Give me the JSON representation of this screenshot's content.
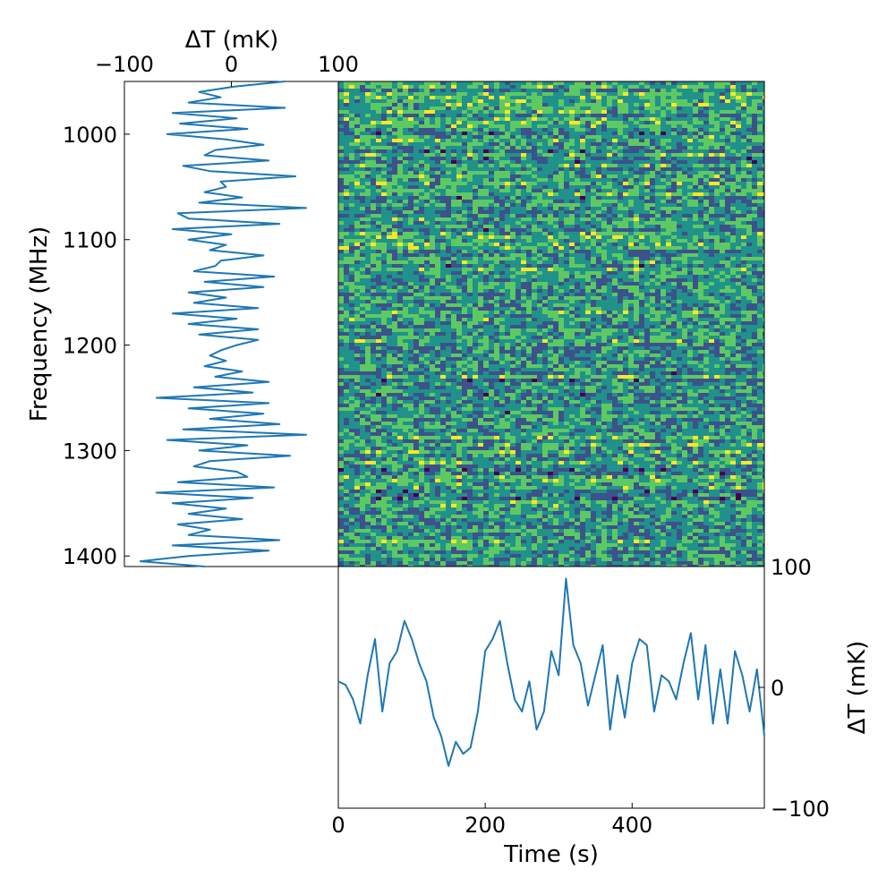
{
  "chart_data": [
    {
      "panel": "spectrum",
      "type": "line",
      "xlabel": "ΔT (mK)",
      "ylabel": "Frequency (MHz)",
      "xlim": [
        -100,
        100
      ],
      "ylim": [
        1410,
        950
      ],
      "xticks": [
        "−100",
        "0",
        "100"
      ],
      "xtick_values": [
        -100,
        0,
        100
      ],
      "yticks": [
        "1000",
        "1100",
        "1200",
        "1300",
        "1400"
      ],
      "ytick_values": [
        1000,
        1100,
        1200,
        1300,
        1400
      ],
      "color": "#1f77b4",
      "series": [
        {
          "frequency_mhz": [
            950,
            955,
            960,
            965,
            970,
            975,
            980,
            985,
            990,
            995,
            1000,
            1005,
            1010,
            1015,
            1020,
            1025,
            1030,
            1035,
            1040,
            1045,
            1050,
            1055,
            1060,
            1065,
            1070,
            1075,
            1080,
            1085,
            1090,
            1095,
            1100,
            1105,
            1110,
            1115,
            1120,
            1125,
            1130,
            1135,
            1140,
            1145,
            1150,
            1155,
            1160,
            1165,
            1170,
            1175,
            1180,
            1185,
            1190,
            1195,
            1200,
            1205,
            1210,
            1215,
            1220,
            1225,
            1230,
            1235,
            1240,
            1245,
            1250,
            1255,
            1260,
            1265,
            1270,
            1275,
            1280,
            1285,
            1290,
            1295,
            1300,
            1305,
            1310,
            1315,
            1320,
            1325,
            1330,
            1335,
            1340,
            1345,
            1350,
            1355,
            1360,
            1365,
            1370,
            1375,
            1380,
            1385,
            1390,
            1395,
            1400,
            1405,
            1410
          ],
          "delta_t_mk": [
            50,
            2,
            -30,
            -10,
            -40,
            50,
            -55,
            5,
            -48,
            15,
            -60,
            -5,
            30,
            -15,
            -25,
            35,
            -45,
            -20,
            60,
            -10,
            -5,
            -25,
            10,
            -30,
            70,
            -50,
            -40,
            45,
            -55,
            0,
            -40,
            -5,
            -20,
            30,
            -10,
            -15,
            -35,
            40,
            -25,
            30,
            -40,
            -5,
            -35,
            25,
            -55,
            5,
            -40,
            25,
            -30,
            25,
            5,
            -10,
            -20,
            -5,
            -25,
            10,
            -15,
            35,
            -35,
            20,
            -70,
            35,
            -40,
            30,
            -20,
            45,
            -45,
            70,
            -60,
            15,
            -30,
            55,
            -20,
            -35,
            5,
            15,
            -50,
            40,
            -70,
            20,
            -55,
            -5,
            -40,
            10,
            -50,
            -20,
            -40,
            45,
            -55,
            35,
            -40,
            -85,
            -25
          ]
        }
      ]
    },
    {
      "panel": "waterfall",
      "type": "heatmap",
      "xlim": [
        0,
        580
      ],
      "ylim": [
        1410,
        950
      ],
      "colormap": "viridis",
      "colors": [
        "#440154",
        "#3b528b",
        "#21918c",
        "#5ec962",
        "#fde725"
      ]
    },
    {
      "panel": "timestream",
      "type": "line",
      "xlabel": "Time (s)",
      "ylabel": "ΔT (mK)",
      "xlim": [
        0,
        580
      ],
      "ylim": [
        -100,
        100
      ],
      "xticks": [
        "0",
        "200",
        "400"
      ],
      "xtick_values": [
        0,
        200,
        400
      ],
      "yticks": [
        "100",
        "0",
        "−100"
      ],
      "ytick_values": [
        100,
        0,
        -100
      ],
      "color": "#1f77b4",
      "series": [
        {
          "time_s": [
            0,
            10,
            20,
            30,
            40,
            50,
            60,
            70,
            80,
            90,
            100,
            110,
            120,
            130,
            140,
            150,
            160,
            170,
            180,
            190,
            200,
            210,
            220,
            230,
            240,
            250,
            260,
            270,
            280,
            290,
            300,
            310,
            320,
            330,
            340,
            350,
            360,
            370,
            380,
            390,
            400,
            410,
            420,
            430,
            440,
            450,
            460,
            470,
            480,
            490,
            500,
            510,
            520,
            530,
            540,
            550,
            560,
            570,
            580
          ],
          "delta_t_mk": [
            5,
            2,
            -10,
            -30,
            10,
            40,
            -20,
            20,
            30,
            55,
            40,
            20,
            5,
            -25,
            -40,
            -65,
            -45,
            -55,
            -50,
            -20,
            30,
            40,
            55,
            20,
            -10,
            -20,
            5,
            -35,
            -20,
            30,
            10,
            90,
            35,
            20,
            -15,
            10,
            35,
            -35,
            10,
            -25,
            20,
            40,
            35,
            -20,
            10,
            5,
            -10,
            20,
            45,
            -10,
            35,
            -30,
            15,
            -30,
            30,
            10,
            -20,
            15,
            -40
          ]
        }
      ]
    }
  ]
}
